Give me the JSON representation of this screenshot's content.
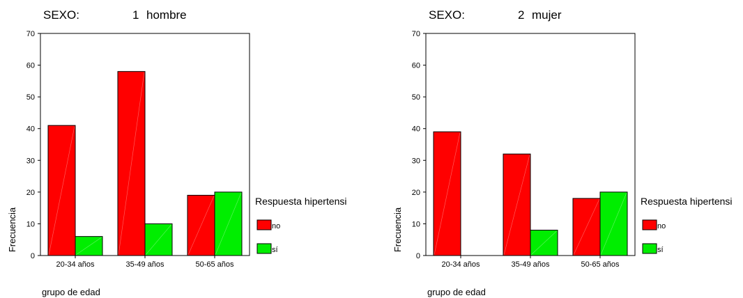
{
  "colors": {
    "no": "#ff0000",
    "si": "#00ee00"
  },
  "chart_data": [
    {
      "type": "bar",
      "title_label": "SEXO:",
      "title_code": "1",
      "title_value": "hombre",
      "xlabel": "grupo de edad",
      "ylabel": "Frecuencia",
      "ylim": [
        0,
        70
      ],
      "yticks": [
        0,
        10,
        20,
        30,
        40,
        50,
        60,
        70
      ],
      "categories": [
        "20-34 años",
        "35-49 años",
        "50-65 años"
      ],
      "legend_title": "Respuesta hipertensi",
      "legend_position": "right",
      "series": [
        {
          "name": "no",
          "values": [
            41,
            58,
            19
          ]
        },
        {
          "name": "sí",
          "values": [
            6,
            10,
            20
          ]
        }
      ]
    },
    {
      "type": "bar",
      "title_label": "SEXO:",
      "title_code": "2",
      "title_value": "mujer",
      "xlabel": "grupo de edad",
      "ylabel": "Frecuencia",
      "ylim": [
        0,
        70
      ],
      "yticks": [
        0,
        10,
        20,
        30,
        40,
        50,
        60,
        70
      ],
      "categories": [
        "20-34 años",
        "35-49 años",
        "50-65 años"
      ],
      "legend_title": "Respuesta hipertensi",
      "legend_position": "right",
      "series": [
        {
          "name": "no",
          "values": [
            39,
            32,
            18
          ]
        },
        {
          "name": "sí",
          "values": [
            0,
            8,
            20
          ]
        }
      ]
    }
  ]
}
